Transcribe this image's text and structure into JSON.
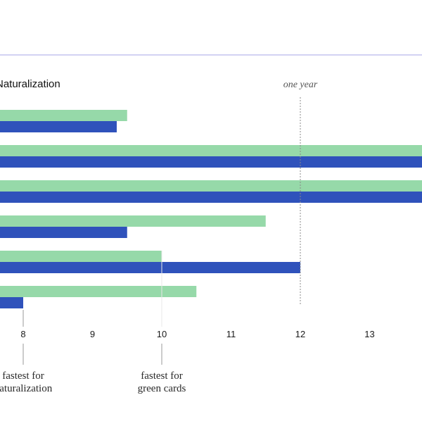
{
  "colors": {
    "green_cards": "#96d9a9",
    "naturalization": "#2f52bb",
    "top_rule": "#b9b8ec",
    "axis_text": "#1a1a1a",
    "annotation": "#555555"
  },
  "chart_data": {
    "type": "bar",
    "orientation": "horizontal",
    "title": "Naturalization",
    "xlim": [
      7.7,
      13.8
    ],
    "x_ticks": [
      "8",
      "9",
      "10",
      "11",
      "12",
      "13"
    ],
    "categories": [
      "",
      "",
      "",
      "",
      "",
      ""
    ],
    "series": [
      {
        "key": "green_cards",
        "values": [
          9.5,
          14,
          14,
          11.5,
          10,
          10.5
        ]
      },
      {
        "key": "naturalization",
        "values": [
          9.35,
          14,
          14,
          9.5,
          12,
          8
        ]
      }
    ],
    "reference_line": {
      "value": 12,
      "label": "one year"
    },
    "annotations": [
      {
        "x": 8,
        "label_lines": [
          "fastest for",
          "naturalization"
        ]
      },
      {
        "x": 10,
        "label_lines": [
          "fastest for",
          "green cards"
        ]
      }
    ],
    "grid": false,
    "legend": "none"
  }
}
